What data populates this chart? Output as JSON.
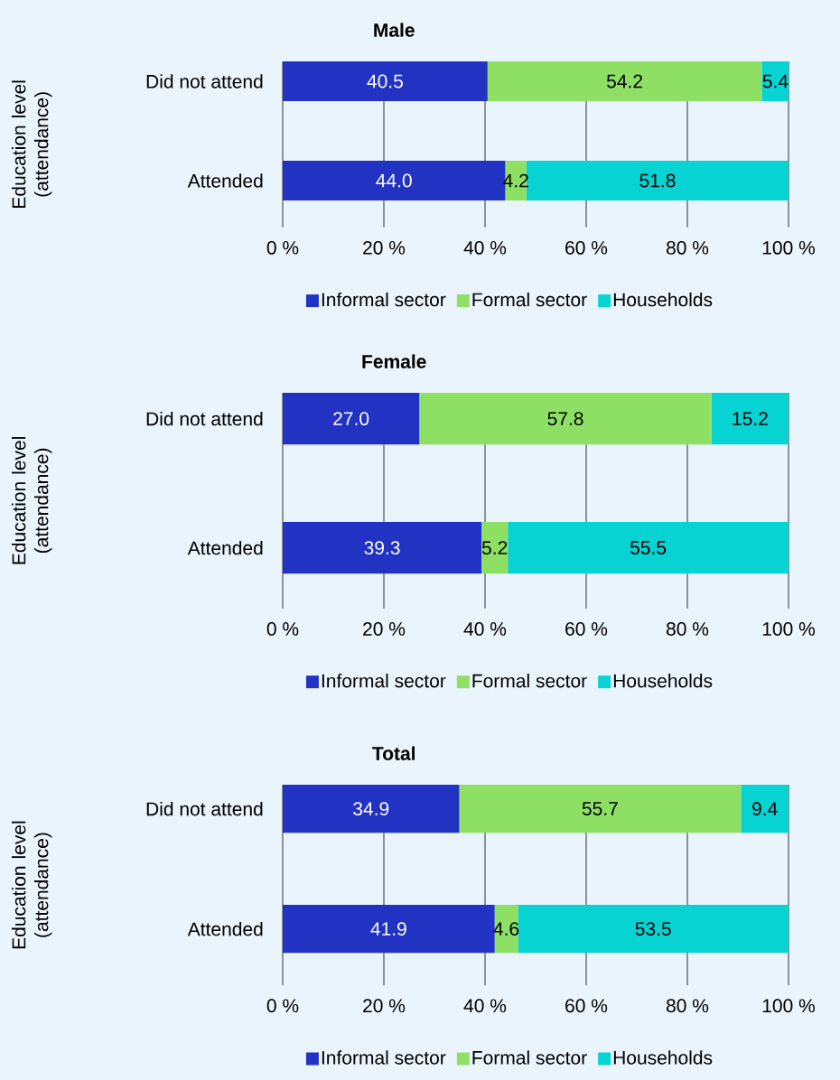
{
  "chart_data": [
    {
      "type": "bar",
      "orientation": "horizontal",
      "stacked": true,
      "title": "Male",
      "ylabel": "Education level (attendance)",
      "categories": [
        "Did not attend",
        "Attended"
      ],
      "xlim": [
        0,
        100
      ],
      "xticks": [
        {
          "value": 0,
          "label": "0 %"
        },
        {
          "value": 20,
          "label": "20 %"
        },
        {
          "value": 40,
          "label": "40 %"
        },
        {
          "value": 60,
          "label": "60 %"
        },
        {
          "value": 80,
          "label": "80 %"
        },
        {
          "value": 100,
          "label": "100 %"
        }
      ],
      "grid": "x",
      "legend": "bottom",
      "series": [
        {
          "name": "Informal sector",
          "color": "#2233c4",
          "values": [
            40.5,
            44.0
          ],
          "value_labels": [
            "40.5",
            "44.0"
          ]
        },
        {
          "name": "Formal sector",
          "color": "#8ee065",
          "values": [
            54.2,
            4.2
          ],
          "value_labels": [
            "54.2",
            "4.2"
          ]
        },
        {
          "name": "Households",
          "color": "#07d3d3",
          "values": [
            5.4,
            51.8
          ],
          "value_labels": [
            "5.4",
            "51.8"
          ]
        }
      ]
    },
    {
      "type": "bar",
      "orientation": "horizontal",
      "stacked": true,
      "title": "Female",
      "ylabel": "Education level (attendance)",
      "categories": [
        "Did not attend",
        "Attended"
      ],
      "xlim": [
        0,
        100
      ],
      "xticks": [
        {
          "value": 0,
          "label": "0 %"
        },
        {
          "value": 20,
          "label": "20 %"
        },
        {
          "value": 40,
          "label": "40 %"
        },
        {
          "value": 60,
          "label": "60 %"
        },
        {
          "value": 80,
          "label": "80 %"
        },
        {
          "value": 100,
          "label": "100 %"
        }
      ],
      "grid": "x",
      "legend": "bottom",
      "series": [
        {
          "name": "Informal sector",
          "color": "#2233c4",
          "values": [
            27.0,
            39.3
          ],
          "value_labels": [
            "27.0",
            "39.3"
          ]
        },
        {
          "name": "Formal sector",
          "color": "#8ee065",
          "values": [
            57.8,
            5.2
          ],
          "value_labels": [
            "57.8",
            "5.2"
          ]
        },
        {
          "name": "Households",
          "color": "#07d3d3",
          "values": [
            15.2,
            55.5
          ],
          "value_labels": [
            "15.2",
            "55.5"
          ]
        }
      ]
    },
    {
      "type": "bar",
      "orientation": "horizontal",
      "stacked": true,
      "title": "Total",
      "ylabel": "Education level (attendance)",
      "categories": [
        "Did not attend",
        "Attended"
      ],
      "xlim": [
        0,
        100
      ],
      "xticks": [
        {
          "value": 0,
          "label": "0 %"
        },
        {
          "value": 20,
          "label": "20 %"
        },
        {
          "value": 40,
          "label": "40 %"
        },
        {
          "value": 60,
          "label": "60 %"
        },
        {
          "value": 80,
          "label": "80 %"
        },
        {
          "value": 100,
          "label": "100 %"
        }
      ],
      "grid": "x",
      "legend": "bottom",
      "series": [
        {
          "name": "Informal sector",
          "color": "#2233c4",
          "values": [
            34.9,
            41.9
          ],
          "value_labels": [
            "34.9",
            "41.9"
          ]
        },
        {
          "name": "Formal sector",
          "color": "#8ee065",
          "values": [
            55.7,
            4.6
          ],
          "value_labels": [
            "55.7",
            "4.6"
          ]
        },
        {
          "name": "Households",
          "color": "#07d3d3",
          "values": [
            9.4,
            53.5
          ],
          "value_labels": [
            "9.4",
            "53.5"
          ]
        }
      ]
    }
  ]
}
